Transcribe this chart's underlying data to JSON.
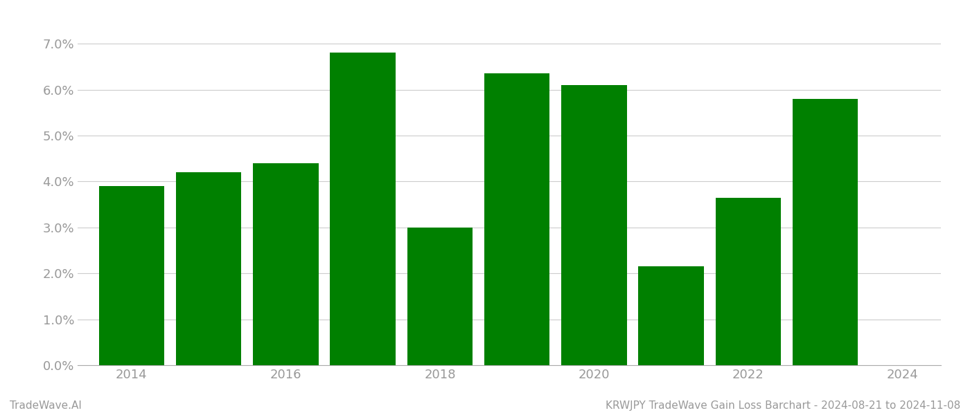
{
  "years": [
    2014,
    2015,
    2016,
    2017,
    2018,
    2019,
    2020,
    2021,
    2022,
    2023
  ],
  "values": [
    0.039,
    0.042,
    0.044,
    0.068,
    0.03,
    0.0635,
    0.061,
    0.0215,
    0.0365,
    0.058
  ],
  "bar_color": "#008000",
  "bar_width": 0.85,
  "ylim": [
    0,
    0.075
  ],
  "yticks": [
    0.0,
    0.01,
    0.02,
    0.03,
    0.04,
    0.05,
    0.06,
    0.07
  ],
  "background_color": "#ffffff",
  "grid_color": "#cccccc",
  "text_color": "#999999",
  "footer_left": "TradeWave.AI",
  "footer_right": "KRWJPY TradeWave Gain Loss Barchart - 2024-08-21 to 2024-11-08",
  "xtick_labels": [
    "2014",
    "2016",
    "2018",
    "2020",
    "2022",
    "2024"
  ],
  "xtick_positions": [
    2014,
    2016,
    2018,
    2020,
    2022,
    2024
  ],
  "xlim_left": 2013.3,
  "xlim_right": 2024.5
}
